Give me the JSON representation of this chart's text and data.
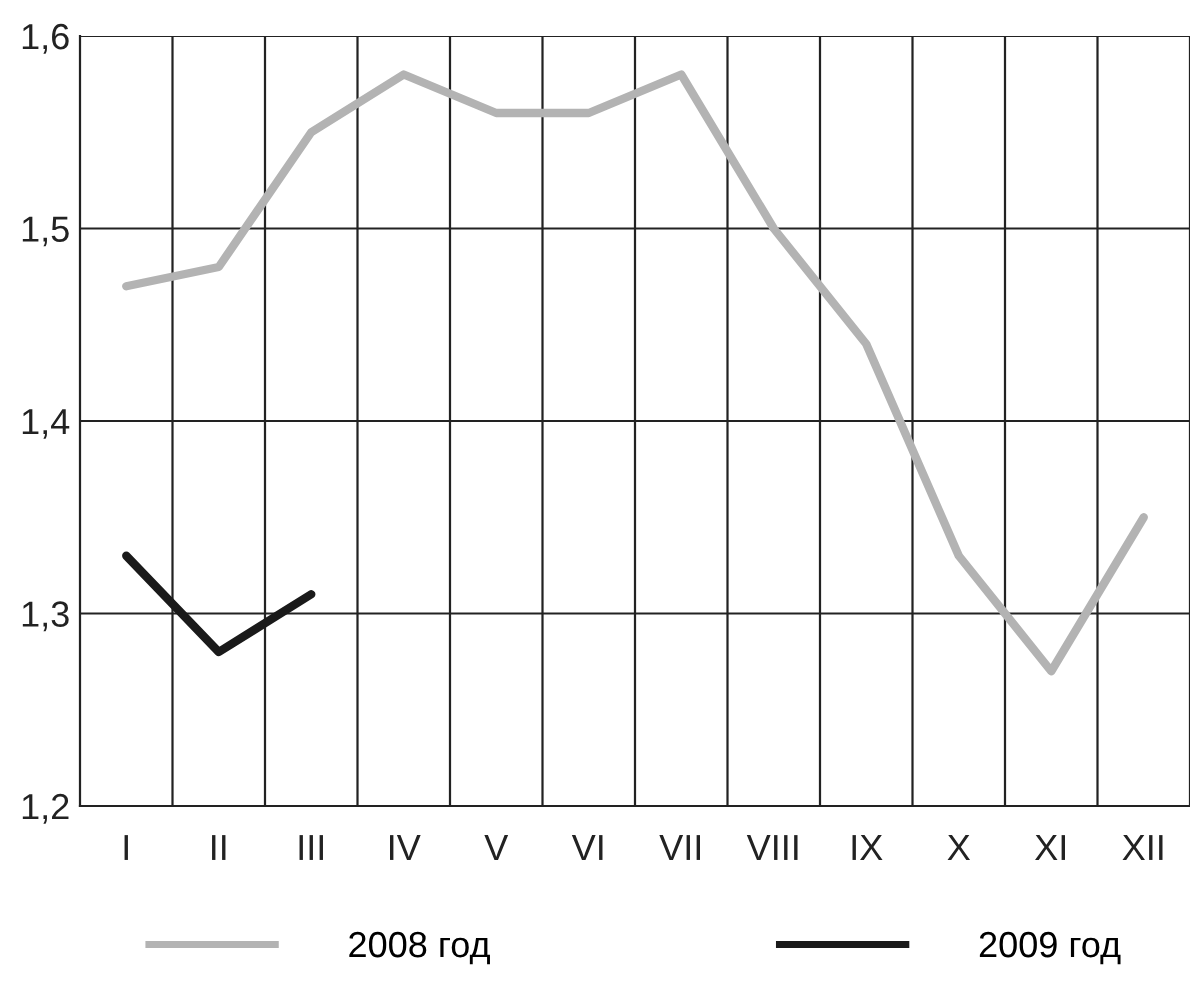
{
  "chart_data": {
    "type": "line",
    "categories": [
      "I",
      "II",
      "III",
      "IV",
      "V",
      "VI",
      "VII",
      "VIII",
      "IX",
      "X",
      "XI",
      "XII"
    ],
    "series": [
      {
        "name": "2008 год",
        "color": "#b3b3b3",
        "values": [
          1.47,
          1.48,
          1.55,
          1.58,
          1.56,
          1.56,
          1.58,
          1.5,
          1.44,
          1.33,
          1.27,
          1.35
        ]
      },
      {
        "name": "2009 год",
        "color": "#1a1a1a",
        "values": [
          1.33,
          1.28,
          1.31,
          null,
          null,
          null,
          null,
          null,
          null,
          null,
          null,
          null
        ]
      }
    ],
    "ylim": [
      1.2,
      1.6
    ],
    "yticks": [
      {
        "value": 1.2,
        "label": "1,2"
      },
      {
        "value": 1.3,
        "label": "1,3"
      },
      {
        "value": 1.4,
        "label": "1,4"
      },
      {
        "value": 1.5,
        "label": "1,5"
      },
      {
        "value": 1.6,
        "label": "1,6"
      }
    ],
    "grid": true,
    "legend": "bottom",
    "marker": "none",
    "line_style": "solid"
  }
}
